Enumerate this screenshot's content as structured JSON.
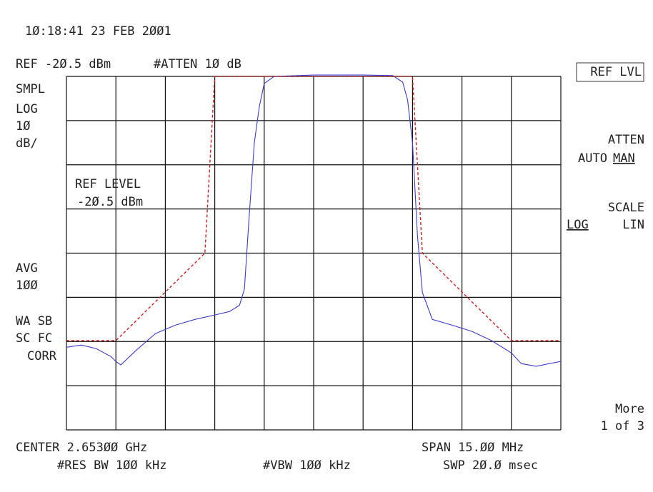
{
  "chart_data": {
    "type": "line",
    "annotations": [
      "1Ø:18:41  23 FEB 2ØØ1",
      "REF -2Ø.5 dBm",
      "#ATTEN 1Ø dB",
      "SMPL",
      "LOG",
      "1Ø",
      "dB/",
      "REF LEVEL",
      "-2Ø.5 dBm",
      "AVG",
      "1ØØ",
      "WA SB",
      "SC FC",
      "CORR",
      "CENTER 2.653ØØ GHz",
      "SPAN 15.ØØ MHz",
      "#RES BW 1ØØ kHz",
      "#VBW 1ØØ kHz",
      "SWP 2Ø.Ø msec"
    ],
    "softkeys": [
      "REF LVL",
      "ATTEN",
      "AUTO",
      "MAN",
      "SCALE",
      "LOG",
      "LIN",
      "More",
      "1 of 3"
    ],
    "xlim": [
      2.6455,
      2.6605
    ],
    "xticks": [
      2.6455,
      2.647,
      2.6485,
      2.65,
      2.6515,
      2.653,
      2.6545,
      2.656,
      2.6575,
      2.659,
      2.6605
    ],
    "ylim": [
      -100.5,
      -20.5
    ],
    "yticks": [
      -100.5,
      -90.5,
      -80.5,
      -70.5,
      -60.5,
      -50.5,
      -40.5,
      -30.5,
      -20.5
    ],
    "grid": true,
    "series": [
      {
        "color": "#3b3bd0",
        "dash": false,
        "x": [
          2.6455,
          2.64595,
          2.6464,
          2.64685,
          2.647,
          2.64715,
          2.6476,
          2.6482,
          2.6488,
          2.6494,
          2.65,
          2.65045,
          2.65075,
          2.6509,
          2.65105,
          2.6512,
          2.65135,
          2.6515,
          2.6518,
          2.653,
          2.6545,
          2.6554,
          2.6557,
          2.65585,
          2.656,
          2.65615,
          2.6563,
          2.6566,
          2.6572,
          2.6578,
          2.6584,
          2.659,
          2.6593,
          2.65975,
          2.6605
        ],
        "values": [
          -81.8,
          -81.3,
          -82.1,
          -83.9,
          -85.0,
          -85.8,
          -82.6,
          -78.7,
          -76.8,
          -75.5,
          -74.5,
          -73.7,
          -72.3,
          -68.6,
          -51.6,
          -35.5,
          -27.4,
          -22.1,
          -20.5,
          -20.2,
          -20.2,
          -20.3,
          -21.8,
          -25.8,
          -35.5,
          -56.5,
          -69.4,
          -75.5,
          -76.8,
          -78.2,
          -80.3,
          -83.1,
          -85.5,
          -86.1,
          -85.0
        ]
      },
      {
        "color": "#d02020",
        "dash": true,
        "x": [
          2.6455,
          2.647,
          2.6497,
          2.65,
          2.656,
          2.6563,
          2.659,
          2.6605
        ],
        "values": [
          -80.3,
          -80.3,
          -60.5,
          -20.5,
          -20.5,
          -60.5,
          -80.3,
          -80.3
        ]
      }
    ]
  }
}
